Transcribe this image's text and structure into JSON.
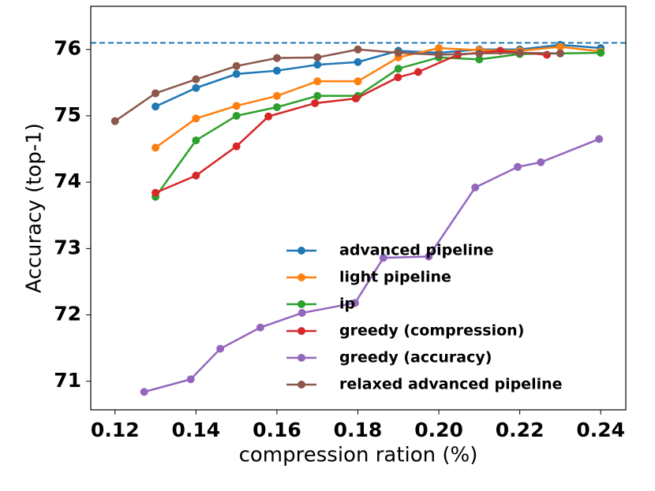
{
  "chart_data": {
    "type": "line",
    "x_label": "compression ration (%)",
    "y_label": "Accuracy (top-1)",
    "xlim": [
      0.114,
      0.2462
    ],
    "ylim": [
      70.57,
      76.65
    ],
    "xticks": [
      0.12,
      0.14,
      0.16,
      0.18,
      {
        "value": 0.2,
        "label": "0.20"
      },
      0.22,
      0.24
    ],
    "yticks": [
      71,
      72,
      73,
      74,
      75,
      76
    ],
    "reference_line": {
      "value": 76.1,
      "color": "#1f77b4"
    },
    "legend": "lower right",
    "series": [
      {
        "name": "advanced pipeline",
        "color": "#1f77b4",
        "x": [
          0.13,
          0.14,
          0.15,
          0.16,
          0.17,
          0.18,
          0.19,
          0.2,
          0.21,
          0.22,
          0.23,
          0.24
        ],
        "values": [
          75.14,
          75.42,
          75.63,
          75.68,
          75.77,
          75.81,
          75.98,
          75.95,
          76.0,
          76.0,
          76.07,
          76.02
        ]
      },
      {
        "name": "light pipeline",
        "color": "#ff7f0e",
        "x": [
          0.13,
          0.14,
          0.15,
          0.16,
          0.17,
          0.18,
          0.19,
          0.2,
          0.21,
          0.22,
          0.23,
          0.24
        ],
        "values": [
          74.52,
          74.96,
          75.15,
          75.3,
          75.52,
          75.52,
          75.88,
          76.02,
          75.99,
          75.98,
          76.04,
          75.97
        ]
      },
      {
        "name": "ip",
        "color": "#2ca02c",
        "x": [
          0.13,
          0.14,
          0.15,
          0.16,
          0.17,
          0.18,
          0.19,
          0.2,
          0.21,
          0.22,
          0.23,
          0.24
        ],
        "values": [
          73.78,
          74.63,
          75.0,
          75.13,
          75.3,
          75.3,
          75.71,
          75.88,
          75.85,
          75.93,
          75.94,
          75.95
        ]
      },
      {
        "name": "greedy (compression)",
        "color": "#d62728",
        "x": [
          0.13,
          0.14,
          0.15,
          0.1579,
          0.1694,
          0.1795,
          0.1899,
          0.1949,
          0.2047,
          0.2152,
          0.2267
        ],
        "values": [
          73.84,
          74.1,
          74.54,
          74.99,
          75.19,
          75.26,
          75.58,
          75.66,
          75.92,
          75.98,
          75.92
        ]
      },
      {
        "name": "greedy (accuracy)",
        "color": "#9467bd",
        "x": [
          0.1272,
          0.1387,
          0.146,
          0.1559,
          0.1662,
          0.1793,
          0.1863,
          0.1975,
          0.209,
          0.2195,
          0.2252,
          0.2396
        ],
        "values": [
          70.84,
          71.03,
          71.49,
          71.81,
          72.03,
          72.18,
          72.86,
          72.88,
          73.92,
          74.23,
          74.3,
          74.65
        ]
      },
      {
        "name": "relaxed advanced pipeline",
        "color": "#8c564b",
        "x": [
          0.12,
          0.13,
          0.14,
          0.15,
          0.16,
          0.17,
          0.18,
          0.19,
          0.2,
          0.21,
          0.22,
          0.23
        ],
        "values": [
          74.92,
          75.34,
          75.55,
          75.75,
          75.87,
          75.88,
          76.0,
          75.95,
          75.92,
          75.94,
          75.95,
          75.94
        ]
      }
    ]
  }
}
